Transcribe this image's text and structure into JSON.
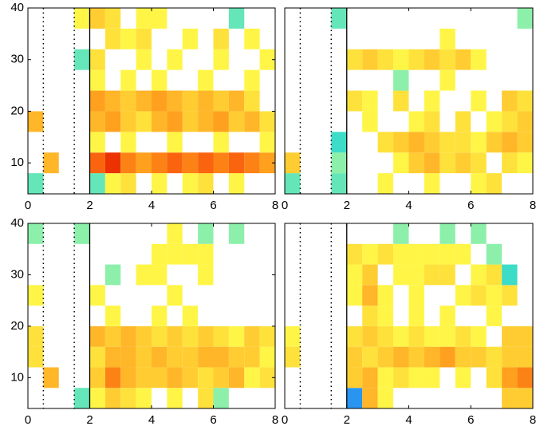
{
  "chart_data": [
    {
      "type": "heatmap",
      "x": [
        0,
        0.5,
        1,
        1.5,
        2,
        2.5,
        3,
        3.5,
        4,
        4.5,
        5,
        5.5,
        6,
        6.5,
        7,
        7.5,
        8
      ],
      "y": [
        4,
        8,
        12,
        16,
        20,
        24,
        28,
        32,
        36,
        40
      ],
      "xlim": [
        0,
        8
      ],
      "ylim": [
        4,
        40
      ],
      "xticks": [
        0,
        2,
        4,
        6,
        8
      ],
      "yticks": [
        10,
        20,
        30,
        40
      ],
      "clim": [
        -1,
        1
      ],
      "vlines": [
        {
          "x": 0.5,
          "style": "dotted"
        },
        {
          "x": 1.5,
          "style": "dotted"
        },
        {
          "x": 2,
          "style": "solid"
        }
      ],
      "z": [
        [
          -0.4,
          null,
          null,
          null,
          -0.4,
          0.3,
          0.4,
          null,
          0.3,
          null,
          0.3,
          0.4,
          null,
          0.3,
          null,
          null
        ],
        [
          null,
          0.6,
          null,
          null,
          0.9,
          1,
          0.8,
          0.7,
          0.8,
          0.9,
          0.8,
          0.9,
          0.8,
          0.9,
          0.8,
          0.7
        ],
        [
          null,
          null,
          null,
          null,
          0.3,
          null,
          0.3,
          null,
          null,
          0.3,
          null,
          null,
          0.3,
          null,
          null,
          0.3
        ],
        [
          0.6,
          null,
          null,
          null,
          0.6,
          0.7,
          0.5,
          0.4,
          0.6,
          0.7,
          0.5,
          0.6,
          0.7,
          0.5,
          0.6,
          0.4
        ],
        [
          null,
          null,
          null,
          null,
          0.7,
          0.6,
          0.5,
          0.6,
          0.7,
          0.6,
          0.5,
          0.6,
          0.5,
          0.6,
          0.4,
          null
        ],
        [
          null,
          null,
          null,
          null,
          0.3,
          null,
          0.3,
          null,
          0.3,
          null,
          null,
          0.3,
          null,
          null,
          0.3,
          null
        ],
        [
          null,
          null,
          null,
          -0.4,
          0.4,
          null,
          null,
          0.3,
          null,
          0.3,
          null,
          null,
          0.3,
          null,
          null,
          0.3
        ],
        [
          null,
          null,
          null,
          null,
          null,
          0.4,
          0.3,
          0.4,
          null,
          null,
          0.3,
          null,
          0.4,
          null,
          0.3,
          null
        ],
        [
          null,
          null,
          null,
          0.3,
          0.5,
          0.4,
          null,
          0.3,
          0.3,
          null,
          null,
          null,
          null,
          -0.4,
          null,
          null
        ]
      ]
    },
    {
      "type": "heatmap",
      "x": [
        0,
        0.5,
        1,
        1.5,
        2,
        2.5,
        3,
        3.5,
        4,
        4.5,
        5,
        5.5,
        6,
        6.5,
        7,
        7.5,
        8
      ],
      "y": [
        4,
        8,
        12,
        16,
        20,
        24,
        28,
        32,
        36,
        40
      ],
      "xlim": [
        0,
        8
      ],
      "ylim": [
        4,
        40
      ],
      "xticks": [
        0,
        2,
        4,
        6,
        8
      ],
      "clim": [
        -1,
        1
      ],
      "vlines": [
        {
          "x": 0.5,
          "style": "dotted"
        },
        {
          "x": 1.5,
          "style": "dotted"
        },
        {
          "x": 2,
          "style": "solid"
        }
      ],
      "z": [
        [
          -0.4,
          null,
          null,
          -0.4,
          null,
          null,
          0.3,
          null,
          null,
          0.3,
          null,
          null,
          0.3,
          0.4,
          null,
          null
        ],
        [
          0.5,
          null,
          null,
          -0.3,
          null,
          null,
          null,
          0.3,
          0.5,
          0.6,
          0.4,
          0.5,
          0.4,
          null,
          0.4,
          0.3
        ],
        [
          null,
          null,
          null,
          -0.5,
          null,
          null,
          0.4,
          0.5,
          0.6,
          0.5,
          0.4,
          0.4,
          0.3,
          0.5,
          0.6,
          0.5
        ],
        [
          null,
          null,
          null,
          null,
          null,
          0.3,
          null,
          null,
          0.3,
          0.4,
          null,
          0.4,
          null,
          0.3,
          0.4,
          0.5
        ],
        [
          null,
          null,
          null,
          null,
          0.4,
          0.3,
          null,
          0.4,
          null,
          0.3,
          null,
          null,
          0.3,
          null,
          0.5,
          0.4
        ],
        [
          null,
          null,
          null,
          null,
          null,
          null,
          null,
          -0.3,
          null,
          null,
          0.3,
          null,
          null,
          null,
          null,
          null
        ],
        [
          null,
          null,
          null,
          null,
          0.4,
          0.5,
          0.4,
          0.3,
          0.4,
          0.5,
          0.4,
          0.5,
          0.3,
          null,
          null,
          null
        ],
        [
          null,
          null,
          null,
          null,
          null,
          null,
          null,
          null,
          null,
          null,
          0.3,
          null,
          null,
          null,
          null,
          null
        ],
        [
          null,
          null,
          null,
          -0.4,
          null,
          null,
          null,
          null,
          null,
          null,
          null,
          null,
          null,
          null,
          null,
          -0.3
        ]
      ]
    },
    {
      "type": "heatmap",
      "x": [
        0,
        0.5,
        1,
        1.5,
        2,
        2.5,
        3,
        3.5,
        4,
        4.5,
        5,
        5.5,
        6,
        6.5,
        7,
        7.5,
        8
      ],
      "y": [
        4,
        8,
        12,
        16,
        20,
        24,
        28,
        32,
        36,
        40
      ],
      "xlim": [
        0,
        8
      ],
      "ylim": [
        4,
        40
      ],
      "xticks": [
        0,
        2,
        4,
        6,
        8
      ],
      "yticks": [
        10,
        20,
        30,
        40
      ],
      "clim": [
        -1,
        1
      ],
      "vlines": [
        {
          "x": 0.5,
          "style": "dotted"
        },
        {
          "x": 1.5,
          "style": "dotted"
        },
        {
          "x": 2,
          "style": "solid"
        }
      ],
      "z": [
        [
          null,
          null,
          null,
          -0.4,
          0.3,
          0.5,
          0.4,
          0.3,
          null,
          0.3,
          null,
          0.4,
          -0.3,
          null,
          null,
          null
        ],
        [
          null,
          0.6,
          null,
          null,
          0.5,
          0.8,
          0.6,
          0.5,
          0.5,
          0.6,
          0.5,
          0.4,
          0.5,
          0.6,
          0.3,
          0.4
        ],
        [
          0.4,
          null,
          null,
          null,
          0.4,
          0.6,
          0.6,
          0.5,
          0.6,
          0.5,
          0.5,
          0.6,
          0.6,
          0.5,
          0.5,
          0.3
        ],
        [
          0.4,
          null,
          null,
          null,
          0.6,
          0.5,
          0.6,
          0.5,
          0.4,
          0.5,
          0.4,
          0.5,
          0.4,
          0.3,
          0.5,
          0.4
        ],
        [
          null,
          null,
          null,
          null,
          null,
          0.3,
          null,
          null,
          0.3,
          null,
          0.3,
          null,
          null,
          null,
          null,
          null
        ],
        [
          0.3,
          null,
          null,
          null,
          0.3,
          null,
          null,
          null,
          null,
          0.3,
          null,
          null,
          null,
          null,
          null,
          null
        ],
        [
          null,
          null,
          null,
          null,
          null,
          -0.3,
          null,
          0.3,
          0.3,
          null,
          null,
          0.3,
          null,
          null,
          null,
          null
        ],
        [
          null,
          null,
          null,
          null,
          null,
          null,
          null,
          null,
          0.3,
          0.3,
          0.3,
          0.3,
          null,
          null,
          null,
          null
        ],
        [
          -0.3,
          null,
          null,
          -0.3,
          null,
          null,
          null,
          null,
          null,
          0.3,
          null,
          -0.3,
          null,
          -0.3,
          null,
          null
        ]
      ]
    },
    {
      "type": "heatmap",
      "x": [
        0,
        0.5,
        1,
        1.5,
        2,
        2.5,
        3,
        3.5,
        4,
        4.5,
        5,
        5.5,
        6,
        6.5,
        7,
        7.5,
        8
      ],
      "y": [
        4,
        8,
        12,
        16,
        20,
        24,
        28,
        32,
        36,
        40
      ],
      "xlim": [
        0,
        8
      ],
      "ylim": [
        4,
        40
      ],
      "xticks": [
        0,
        2,
        4,
        6,
        8
      ],
      "clim": [
        -1,
        1
      ],
      "vlines": [
        {
          "x": 0.5,
          "style": "dotted"
        },
        {
          "x": 1.5,
          "style": "dotted"
        },
        {
          "x": 2,
          "style": "solid"
        }
      ],
      "z": [
        [
          null,
          null,
          null,
          null,
          -0.8,
          0.6,
          0.3,
          null,
          null,
          null,
          null,
          null,
          null,
          null,
          0.5,
          0.5
        ],
        [
          null,
          null,
          null,
          null,
          0.5,
          0.6,
          0.3,
          0.4,
          0.3,
          0.3,
          null,
          0.3,
          null,
          0.4,
          0.7,
          0.8
        ],
        [
          0.4,
          null,
          null,
          null,
          0.5,
          0.4,
          0.5,
          0.6,
          0.5,
          0.6,
          0.7,
          0.5,
          0.5,
          0.4,
          0.5,
          0.5
        ],
        [
          0.3,
          null,
          null,
          null,
          0.4,
          0.5,
          0.4,
          0.3,
          0.4,
          0.3,
          0.3,
          0.4,
          0.3,
          null,
          0.5,
          0.5
        ],
        [
          null,
          null,
          null,
          null,
          null,
          0.4,
          0.3,
          null,
          0.3,
          null,
          0.3,
          null,
          null,
          0.3,
          null,
          null
        ],
        [
          null,
          null,
          null,
          null,
          0.3,
          0.6,
          0.3,
          null,
          0.3,
          null,
          null,
          0.3,
          0.4,
          0.3,
          0.4,
          null
        ],
        [
          null,
          null,
          null,
          null,
          0.3,
          0.5,
          null,
          0.3,
          0.3,
          0.4,
          0.4,
          null,
          0.3,
          0.4,
          -0.5,
          null
        ],
        [
          null,
          null,
          null,
          null,
          0.4,
          0.3,
          0.4,
          0.3,
          0.3,
          0.3,
          0.3,
          0.3,
          null,
          -0.3,
          null,
          null
        ],
        [
          null,
          null,
          null,
          null,
          null,
          null,
          null,
          -0.3,
          null,
          null,
          -0.3,
          null,
          -0.3,
          null,
          null,
          null
        ]
      ]
    }
  ]
}
